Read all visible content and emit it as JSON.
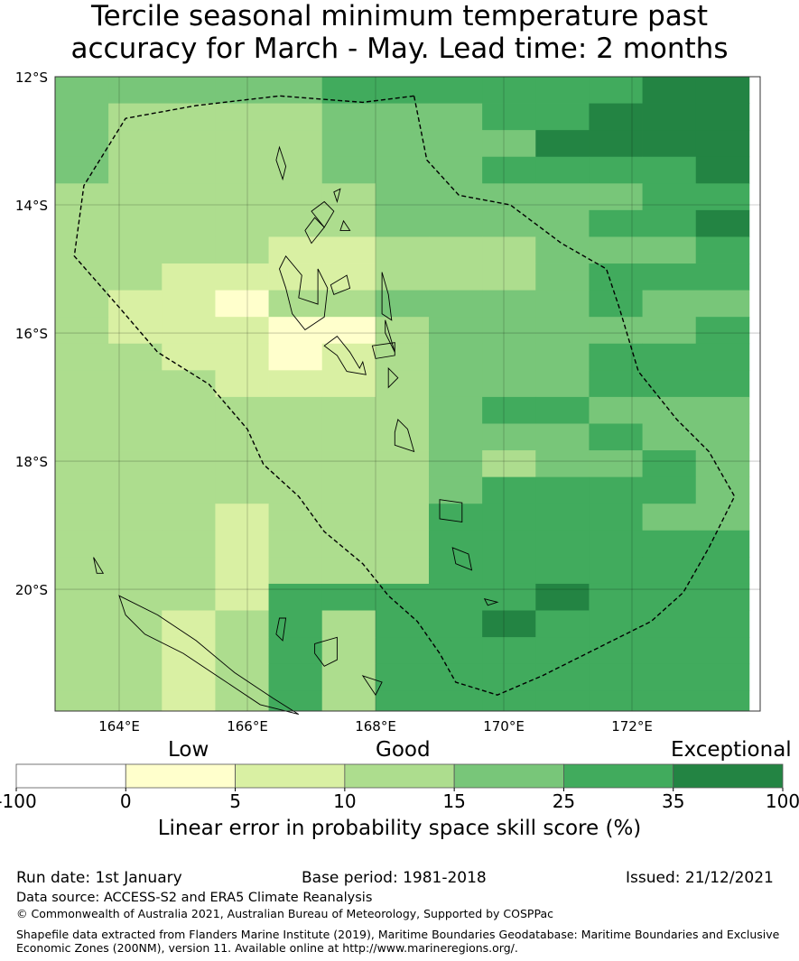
{
  "title": {
    "line1": "Tercile seasonal minimum temperature past",
    "line2": "accuracy for March - May. Lead time: 2 months"
  },
  "map": {
    "lon_range": [
      163.0,
      174.0
    ],
    "lat_range": [
      -21.9,
      -12.0
    ],
    "lon_ticks": [
      {
        "value": 164,
        "label": "164°E"
      },
      {
        "value": 166,
        "label": "166°E"
      },
      {
        "value": 168,
        "label": "168°E"
      },
      {
        "value": 170,
        "label": "170°E"
      },
      {
        "value": 172,
        "label": "172°E"
      }
    ],
    "lat_ticks": [
      {
        "value": -12,
        "label": "12°S"
      },
      {
        "value": -14,
        "label": "14°S"
      },
      {
        "value": -16,
        "label": "16°S"
      },
      {
        "value": -18,
        "label": "18°S"
      },
      {
        "value": -20,
        "label": "20°S"
      }
    ],
    "grid": true,
    "cell_size_deg": 0.833,
    "grid_level_colors": [
      "#ffffff",
      "#ffffcc",
      "#d9f0a3",
      "#addd8e",
      "#78c679",
      "#41ab5d",
      "#238443"
    ],
    "grid_levels": [
      "4444455555566",
      "4333344455666",
      "4333344446666",
      "4333344455556",
      "3333334444455",
      "3333334444556",
      "3333223334445",
      "3322223334555",
      "3221334444544",
      "3222113444445",
      "3322123444555",
      "3332223444555",
      "3333333455444",
      "3333333444544",
      "3333333434454",
      "3333333455554",
      "3332333555544",
      "3332333555555",
      "3332333555555",
      "3332555556555",
      "3323535565555",
      "3323535555555",
      "3323535555555",
      "3323535555555",
      "3323535555555"
    ],
    "eez_boundary": [
      [
        168.6,
        -12.3
      ],
      [
        167.8,
        -12.4
      ],
      [
        166.5,
        -12.3
      ],
      [
        165.2,
        -12.45
      ],
      [
        164.1,
        -12.65
      ],
      [
        163.45,
        -13.7
      ],
      [
        163.3,
        -14.8
      ],
      [
        164.0,
        -15.6
      ],
      [
        164.6,
        -16.3
      ],
      [
        165.4,
        -16.8
      ],
      [
        166.0,
        -17.5
      ],
      [
        166.25,
        -18.05
      ],
      [
        166.8,
        -18.55
      ],
      [
        167.2,
        -19.1
      ],
      [
        167.8,
        -19.6
      ],
      [
        168.2,
        -20.1
      ],
      [
        168.65,
        -20.5
      ],
      [
        169.0,
        -21.0
      ],
      [
        169.25,
        -21.45
      ],
      [
        169.9,
        -21.65
      ],
      [
        170.6,
        -21.35
      ],
      [
        171.6,
        -20.85
      ],
      [
        172.3,
        -20.5
      ],
      [
        172.8,
        -20.05
      ],
      [
        173.2,
        -19.35
      ],
      [
        173.6,
        -18.55
      ],
      [
        173.2,
        -17.85
      ],
      [
        172.7,
        -17.35
      ],
      [
        172.1,
        -16.6
      ],
      [
        171.8,
        -15.6
      ],
      [
        171.6,
        -15.0
      ],
      [
        170.9,
        -14.6
      ],
      [
        170.1,
        -14.0
      ],
      [
        169.3,
        -13.85
      ],
      [
        168.8,
        -13.3
      ],
      [
        168.6,
        -12.3
      ]
    ],
    "islands": [
      [
        [
          166.5,
          -15.0
        ],
        [
          166.6,
          -14.8
        ],
        [
          166.85,
          -15.1
        ],
        [
          166.8,
          -15.45
        ],
        [
          167.1,
          -15.55
        ],
        [
          167.1,
          -15.0
        ],
        [
          167.25,
          -15.3
        ],
        [
          167.2,
          -15.75
        ],
        [
          166.9,
          -15.95
        ],
        [
          166.7,
          -15.7
        ],
        [
          166.6,
          -15.3
        ]
      ],
      [
        [
          167.3,
          -15.25
        ],
        [
          167.55,
          -15.1
        ],
        [
          167.6,
          -15.3
        ],
        [
          167.35,
          -15.4
        ]
      ],
      [
        [
          168.1,
          -15.05
        ],
        [
          168.2,
          -15.4
        ],
        [
          168.25,
          -15.8
        ],
        [
          168.1,
          -15.7
        ]
      ],
      [
        [
          168.15,
          -15.8
        ],
        [
          168.3,
          -16.3
        ],
        [
          168.15,
          -16.0
        ]
      ],
      [
        [
          167.2,
          -16.2
        ],
        [
          167.4,
          -16.05
        ],
        [
          167.6,
          -16.3
        ],
        [
          167.75,
          -16.55
        ],
        [
          167.8,
          -16.45
        ],
        [
          167.85,
          -16.65
        ],
        [
          167.55,
          -16.6
        ],
        [
          167.4,
          -16.35
        ]
      ],
      [
        [
          167.95,
          -16.2
        ],
        [
          168.3,
          -16.15
        ],
        [
          168.3,
          -16.35
        ],
        [
          168.0,
          -16.4
        ]
      ],
      [
        [
          168.2,
          -16.55
        ],
        [
          168.35,
          -16.7
        ],
        [
          168.2,
          -16.85
        ]
      ],
      [
        [
          168.35,
          -17.35
        ],
        [
          168.5,
          -17.5
        ],
        [
          168.6,
          -17.85
        ],
        [
          168.3,
          -17.75
        ],
        [
          168.3,
          -17.55
        ]
      ],
      [
        [
          169.0,
          -18.6
        ],
        [
          169.35,
          -18.65
        ],
        [
          169.35,
          -18.95
        ],
        [
          169.0,
          -18.9
        ]
      ],
      [
        [
          169.2,
          -19.35
        ],
        [
          169.45,
          -19.45
        ],
        [
          169.5,
          -19.7
        ],
        [
          169.25,
          -19.6
        ]
      ],
      [
        [
          169.7,
          -20.15
        ],
        [
          169.9,
          -20.2
        ],
        [
          169.75,
          -20.25
        ]
      ],
      [
        [
          166.5,
          -20.45
        ],
        [
          166.6,
          -20.45
        ],
        [
          166.55,
          -20.8
        ],
        [
          166.45,
          -20.7
        ]
      ],
      [
        [
          167.05,
          -20.85
        ],
        [
          167.4,
          -20.75
        ],
        [
          167.4,
          -21.1
        ],
        [
          167.2,
          -21.2
        ],
        [
          167.05,
          -21.0
        ]
      ],
      [
        [
          167.8,
          -21.35
        ],
        [
          168.1,
          -21.45
        ],
        [
          168.0,
          -21.65
        ]
      ],
      [
        [
          164.0,
          -20.1
        ],
        [
          164.6,
          -20.4
        ],
        [
          165.2,
          -20.8
        ],
        [
          165.8,
          -21.3
        ],
        [
          166.4,
          -21.7
        ],
        [
          166.8,
          -21.95
        ],
        [
          166.2,
          -21.8
        ],
        [
          165.6,
          -21.4
        ],
        [
          165.0,
          -21.0
        ],
        [
          164.4,
          -20.7
        ],
        [
          164.1,
          -20.4
        ]
      ],
      [
        [
          163.6,
          -19.5
        ],
        [
          163.75,
          -19.75
        ],
        [
          163.65,
          -19.75
        ]
      ],
      [
        [
          166.5,
          -13.1
        ],
        [
          166.6,
          -13.4
        ],
        [
          166.55,
          -13.6
        ],
        [
          166.45,
          -13.3
        ]
      ],
      [
        [
          167.2,
          -13.95
        ],
        [
          167.35,
          -14.1
        ],
        [
          167.2,
          -14.35
        ],
        [
          167.0,
          -14.1
        ]
      ],
      [
        [
          167.05,
          -14.2
        ],
        [
          167.2,
          -14.35
        ],
        [
          167.0,
          -14.6
        ],
        [
          166.9,
          -14.4
        ]
      ],
      [
        [
          167.35,
          -13.8
        ],
        [
          167.45,
          -13.75
        ],
        [
          167.4,
          -13.95
        ]
      ],
      [
        [
          167.5,
          -14.25
        ],
        [
          167.6,
          -14.4
        ],
        [
          167.45,
          -14.4
        ]
      ]
    ]
  },
  "colorbar": {
    "headings": {
      "low": "Low",
      "good": "Good",
      "exceptional": "Exceptional"
    },
    "ticks": [
      "-100",
      "0",
      "5",
      "10",
      "15",
      "25",
      "35",
      "100"
    ],
    "colors": [
      "#ffffff",
      "#ffffcc",
      "#d9f0a3",
      "#addd8e",
      "#78c679",
      "#41ab5d",
      "#238443"
    ],
    "label": "Linear error in probability space skill score (%)"
  },
  "footer": {
    "run_date": "Run date: 1st January",
    "base_period": "Base period: 1981-2018",
    "issued": "Issued: 21/12/2021",
    "data_source": "Data source: ACCESS-S2 and ERA5 Climate Reanalysis",
    "copyright": "© Commonwealth of Australia 2021, Australian Bureau of Meteorology, Supported by COSPPac",
    "shapefile_line1": "Shapefile data extracted from Flanders Marine Institute (2019), Maritime Boundaries Geodatabase: Maritime Boundaries and Exclusive",
    "shapefile_line2": "Economic Zones (200NM), version 11. Available online at http://www.marineregions.org/."
  }
}
